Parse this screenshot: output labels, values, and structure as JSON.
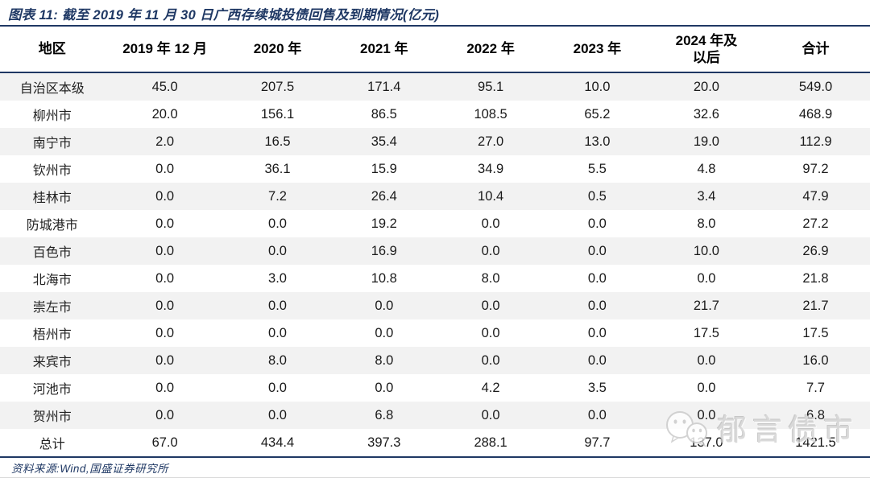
{
  "title": "图表 11: 截至 2019 年 11 月 30 日广西存续城投债回售及到期情况(亿元)",
  "source_note": "资料来源:Wind,国盛证券研究所",
  "watermark": {
    "text": "郁言债市",
    "icon": "wechat-icon"
  },
  "colors": {
    "accent_navy": "#1F3864",
    "row_stripe": "#F2F2F2",
    "header_text": "#000000",
    "body_text": "#1a1a1a",
    "watermark_gray": "#D2D2D2"
  },
  "chart_data": {
    "type": "table",
    "figure_label": "图表 11",
    "title": "截至 2019 年 11 月 30 日广西存续城投债回售及到期情况(亿元)",
    "columns": [
      "地区",
      "2019 年 12 月",
      "2020 年",
      "2021 年",
      "2022 年",
      "2023 年",
      "2024 年及以后",
      "合计"
    ],
    "rows": [
      {
        "region": "自治区本级",
        "values": [
          "45.0",
          "207.5",
          "171.4",
          "95.1",
          "10.0",
          "20.0",
          "549.0"
        ]
      },
      {
        "region": "柳州市",
        "values": [
          "20.0",
          "156.1",
          "86.5",
          "108.5",
          "65.2",
          "32.6",
          "468.9"
        ]
      },
      {
        "region": "南宁市",
        "values": [
          "2.0",
          "16.5",
          "35.4",
          "27.0",
          "13.0",
          "19.0",
          "112.9"
        ]
      },
      {
        "region": "钦州市",
        "values": [
          "0.0",
          "36.1",
          "15.9",
          "34.9",
          "5.5",
          "4.8",
          "97.2"
        ]
      },
      {
        "region": "桂林市",
        "values": [
          "0.0",
          "7.2",
          "26.4",
          "10.4",
          "0.5",
          "3.4",
          "47.9"
        ]
      },
      {
        "region": "防城港市",
        "values": [
          "0.0",
          "0.0",
          "19.2",
          "0.0",
          "0.0",
          "8.0",
          "27.2"
        ]
      },
      {
        "region": "百色市",
        "values": [
          "0.0",
          "0.0",
          "16.9",
          "0.0",
          "0.0",
          "10.0",
          "26.9"
        ]
      },
      {
        "region": "北海市",
        "values": [
          "0.0",
          "3.0",
          "10.8",
          "8.0",
          "0.0",
          "0.0",
          "21.8"
        ]
      },
      {
        "region": "崇左市",
        "values": [
          "0.0",
          "0.0",
          "0.0",
          "0.0",
          "0.0",
          "21.7",
          "21.7"
        ]
      },
      {
        "region": "梧州市",
        "values": [
          "0.0",
          "0.0",
          "0.0",
          "0.0",
          "0.0",
          "17.5",
          "17.5"
        ]
      },
      {
        "region": "来宾市",
        "values": [
          "0.0",
          "8.0",
          "8.0",
          "0.0",
          "0.0",
          "0.0",
          "16.0"
        ]
      },
      {
        "region": "河池市",
        "values": [
          "0.0",
          "0.0",
          "0.0",
          "4.2",
          "3.5",
          "0.0",
          "7.7"
        ]
      },
      {
        "region": "贺州市",
        "values": [
          "0.0",
          "0.0",
          "6.8",
          "0.0",
          "0.0",
          "0.0",
          "6.8"
        ]
      },
      {
        "region": "总计",
        "values": [
          "67.0",
          "434.4",
          "397.3",
          "288.1",
          "97.7",
          "137.0",
          "1421.5"
        ]
      }
    ]
  }
}
